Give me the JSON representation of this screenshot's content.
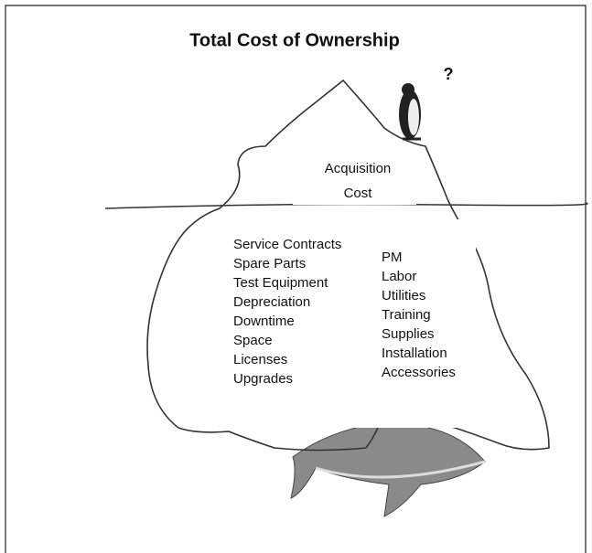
{
  "title": "Total Cost of Ownership",
  "question_mark": "?",
  "tip": {
    "lines": [
      "Acquisition",
      "Cost"
    ]
  },
  "below": {
    "left": [
      "Service Contracts",
      "Spare Parts",
      "Test Equipment",
      "Depreciation",
      "Downtime",
      "Space",
      "Licenses",
      "Upgrades"
    ],
    "right": [
      "PM",
      "Labor",
      "Utilities",
      "Training",
      "Supplies",
      "Installation",
      "Accessories"
    ]
  }
}
